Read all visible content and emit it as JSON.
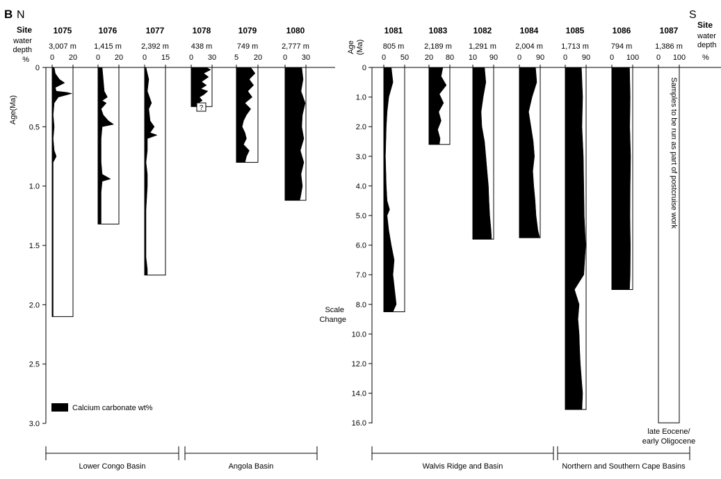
{
  "panel": {
    "letter": "B",
    "north": "N",
    "south": "S",
    "header_site": "Site",
    "header_depth": "water\ndepth",
    "header_pct": "%",
    "left_axis_label": "Age(Ma)",
    "right_axis_label": "Age\n(Ma)",
    "scale_change": "Scale\nChange",
    "legend_label": "Calcium carbonate wt%",
    "note_1087": "Samples to be run as part of postcruise work",
    "note_bottom": "late Eocene/\nearly Oligocene"
  },
  "basins": [
    {
      "label": "Lower Congo Basin"
    },
    {
      "label": "Angola Basin"
    },
    {
      "label": "Walvis Ridge and Basin"
    },
    {
      "label": "Northern and Southern Cape Basins"
    }
  ],
  "chart_data": {
    "type": "area",
    "title": "",
    "left_axis": {
      "ylabel": "Age(Ma)",
      "range": [
        0,
        3.0
      ],
      "ticks": [
        "0",
        "0.5",
        "1.0",
        "1.5",
        "2.0",
        "2.5",
        "3.0"
      ]
    },
    "right_axis": {
      "ylabel": "Age (Ma)",
      "ticks": [
        "0",
        "1.0",
        "2.0",
        "3.0",
        "4.0",
        "5.0",
        "6.0",
        "7.0",
        "8.0",
        "10.0",
        "12.0",
        "14.0",
        "16.0"
      ],
      "note": "Scale Change"
    },
    "series_label": "Calcium carbonate wt%",
    "sites": [
      {
        "site": "1075",
        "depth": "3,007 m",
        "xticks": [
          "0",
          "20"
        ],
        "xmax": 20,
        "max_age": 2.1,
        "carbonate": [
          [
            0,
            2
          ],
          [
            0.05,
            3
          ],
          [
            0.1,
            7
          ],
          [
            0.13,
            12
          ],
          [
            0.17,
            3
          ],
          [
            0.2,
            4
          ],
          [
            0.21,
            14
          ],
          [
            0.22,
            19
          ],
          [
            0.25,
            6
          ],
          [
            0.3,
            2
          ],
          [
            0.4,
            1
          ],
          [
            0.5,
            2
          ],
          [
            0.6,
            1
          ],
          [
            0.7,
            2
          ],
          [
            0.75,
            4
          ],
          [
            0.8,
            1
          ],
          [
            1.0,
            1
          ],
          [
            1.2,
            1
          ],
          [
            1.5,
            1
          ],
          [
            1.8,
            1
          ],
          [
            2.1,
            1
          ]
        ]
      },
      {
        "site": "1076",
        "depth": "1,415 m",
        "xticks": [
          "0",
          "20"
        ],
        "xmax": 20,
        "max_age": 1.32,
        "carbonate": [
          [
            0,
            4
          ],
          [
            0.1,
            5
          ],
          [
            0.2,
            6
          ],
          [
            0.25,
            9
          ],
          [
            0.28,
            4
          ],
          [
            0.3,
            8
          ],
          [
            0.35,
            3
          ],
          [
            0.4,
            5
          ],
          [
            0.45,
            10
          ],
          [
            0.48,
            15
          ],
          [
            0.5,
            4
          ],
          [
            0.6,
            3
          ],
          [
            0.7,
            3
          ],
          [
            0.8,
            3
          ],
          [
            0.9,
            4
          ],
          [
            0.94,
            12
          ],
          [
            0.96,
            4
          ],
          [
            1.05,
            3
          ],
          [
            1.2,
            3
          ],
          [
            1.32,
            3
          ]
        ]
      },
      {
        "site": "1077",
        "depth": "2,392 m",
        "xticks": [
          "0",
          "15"
        ],
        "xmax": 15,
        "max_age": 1.75,
        "carbonate": [
          [
            0,
            1
          ],
          [
            0.1,
            3
          ],
          [
            0.2,
            2
          ],
          [
            0.3,
            5
          ],
          [
            0.35,
            3
          ],
          [
            0.45,
            4
          ],
          [
            0.5,
            7
          ],
          [
            0.55,
            4
          ],
          [
            0.57,
            9
          ],
          [
            0.6,
            2
          ],
          [
            0.7,
            2
          ],
          [
            0.8,
            1
          ],
          [
            0.9,
            2
          ],
          [
            1.0,
            2
          ],
          [
            1.2,
            1
          ],
          [
            1.4,
            1
          ],
          [
            1.6,
            1
          ],
          [
            1.7,
            2
          ],
          [
            1.75,
            2
          ]
        ]
      },
      {
        "site": "1078",
        "depth": "438 m",
        "xticks": [
          "0",
          "30"
        ],
        "xmax": 30,
        "max_age": 0.33,
        "carbonate": [
          [
            0,
            22
          ],
          [
            0.02,
            28
          ],
          [
            0.05,
            18
          ],
          [
            0.08,
            25
          ],
          [
            0.1,
            20
          ],
          [
            0.12,
            15
          ],
          [
            0.15,
            22
          ],
          [
            0.18,
            14
          ],
          [
            0.2,
            24
          ],
          [
            0.23,
            18
          ],
          [
            0.25,
            12
          ],
          [
            0.28,
            16
          ],
          [
            0.3,
            10
          ],
          [
            0.33,
            12
          ]
        ]
      },
      {
        "site": "1079",
        "depth": "749 m",
        "xticks": [
          "5",
          "20"
        ],
        "xmin": 5,
        "xmax": 20,
        "max_age": 0.8,
        "carbonate": [
          [
            0,
            15
          ],
          [
            0.05,
            18
          ],
          [
            0.1,
            14
          ],
          [
            0.15,
            17
          ],
          [
            0.2,
            13
          ],
          [
            0.25,
            16
          ],
          [
            0.3,
            11
          ],
          [
            0.35,
            15
          ],
          [
            0.4,
            12
          ],
          [
            0.45,
            10
          ],
          [
            0.5,
            9
          ],
          [
            0.55,
            11
          ],
          [
            0.6,
            12
          ],
          [
            0.65,
            10
          ],
          [
            0.7,
            14
          ],
          [
            0.75,
            12
          ],
          [
            0.8,
            11
          ]
        ]
      },
      {
        "site": "1080",
        "depth": "2,777 m",
        "xticks": [
          "0",
          "30"
        ],
        "xmax": 30,
        "max_age": 1.12,
        "carbonate": [
          [
            0,
            24
          ],
          [
            0.1,
            26
          ],
          [
            0.2,
            23
          ],
          [
            0.3,
            29
          ],
          [
            0.4,
            25
          ],
          [
            0.5,
            24
          ],
          [
            0.6,
            27
          ],
          [
            0.7,
            22
          ],
          [
            0.8,
            27
          ],
          [
            0.9,
            23
          ],
          [
            1.0,
            25
          ],
          [
            1.1,
            22
          ],
          [
            1.12,
            21
          ]
        ]
      },
      {
        "site": "1081",
        "depth": "805 m",
        "xticks": [
          "0",
          "50"
        ],
        "xmax": 50,
        "max_age": 8.5,
        "carbonate": [
          [
            0,
            18
          ],
          [
            0.5,
            22
          ],
          [
            1,
            12
          ],
          [
            1.5,
            8
          ],
          [
            2,
            6
          ],
          [
            2.5,
            5
          ],
          [
            3,
            4
          ],
          [
            3.5,
            5
          ],
          [
            4,
            6
          ],
          [
            4.5,
            8
          ],
          [
            4.8,
            14
          ],
          [
            5,
            8
          ],
          [
            5.5,
            12
          ],
          [
            6,
            18
          ],
          [
            6.5,
            25
          ],
          [
            7,
            22
          ],
          [
            7.5,
            26
          ],
          [
            8,
            30
          ],
          [
            8.5,
            22
          ]
        ]
      },
      {
        "site": "1083",
        "depth": "2,189 m",
        "xticks": [
          "20",
          "80"
        ],
        "xmin": 20,
        "xmax": 80,
        "max_age": 2.6,
        "carbonate": [
          [
            0,
            60
          ],
          [
            0.3,
            55
          ],
          [
            0.6,
            70
          ],
          [
            0.9,
            50
          ],
          [
            1.2,
            62
          ],
          [
            1.5,
            48
          ],
          [
            1.8,
            55
          ],
          [
            2.1,
            45
          ],
          [
            2.4,
            52
          ],
          [
            2.6,
            50
          ]
        ]
      },
      {
        "site": "1082",
        "depth": "1,291 m",
        "xticks": [
          "10",
          "90"
        ],
        "xmin": 10,
        "xmax": 90,
        "max_age": 5.8,
        "carbonate": [
          [
            0,
            55
          ],
          [
            0.5,
            60
          ],
          [
            1,
            50
          ],
          [
            1.5,
            42
          ],
          [
            2,
            45
          ],
          [
            2.5,
            55
          ],
          [
            3,
            60
          ],
          [
            3.5,
            65
          ],
          [
            4,
            70
          ],
          [
            4.5,
            72
          ],
          [
            5,
            75
          ],
          [
            5.5,
            80
          ],
          [
            5.8,
            82
          ]
        ]
      },
      {
        "site": "1084",
        "depth": "2,004 m",
        "xticks": [
          "0",
          "90"
        ],
        "xmax": 90,
        "max_age": 5.75,
        "carbonate": [
          [
            0,
            70
          ],
          [
            0.5,
            75
          ],
          [
            1,
            55
          ],
          [
            1.5,
            40
          ],
          [
            2,
            50
          ],
          [
            2.5,
            60
          ],
          [
            3,
            65
          ],
          [
            3.5,
            58
          ],
          [
            4,
            62
          ],
          [
            4.5,
            68
          ],
          [
            5,
            72
          ],
          [
            5.5,
            80
          ],
          [
            5.75,
            88
          ]
        ]
      },
      {
        "site": "1085",
        "depth": "1,713 m",
        "xticks": [
          "0",
          "90"
        ],
        "xmax": 90,
        "max_age": 15.1,
        "carbonate": [
          [
            0,
            70
          ],
          [
            1,
            75
          ],
          [
            2,
            72
          ],
          [
            3,
            78
          ],
          [
            4,
            80
          ],
          [
            5,
            82
          ],
          [
            6,
            88
          ],
          [
            7,
            80
          ],
          [
            7.5,
            40
          ],
          [
            8,
            60
          ],
          [
            9,
            55
          ],
          [
            10,
            60
          ],
          [
            11,
            62
          ],
          [
            12,
            65
          ],
          [
            13,
            70
          ],
          [
            14,
            75
          ],
          [
            15.1,
            72
          ]
        ]
      },
      {
        "site": "1086",
        "depth": "794 m",
        "xticks": [
          "0",
          "100"
        ],
        "xmax": 100,
        "max_age": 7.5,
        "carbonate": [
          [
            0,
            85
          ],
          [
            1,
            88
          ],
          [
            2,
            86
          ],
          [
            3,
            90
          ],
          [
            4,
            88
          ],
          [
            5,
            87
          ],
          [
            6,
            89
          ],
          [
            7,
            88
          ],
          [
            7.5,
            85
          ]
        ]
      },
      {
        "site": "1087",
        "depth": "1,386 m",
        "xticks": [
          "0",
          "100"
        ],
        "xmax": 100,
        "max_age": 16.0,
        "carbonate": []
      }
    ]
  },
  "colors": {
    "fill": "#000000",
    "frame": "#000000",
    "background": "#ffffff"
  }
}
